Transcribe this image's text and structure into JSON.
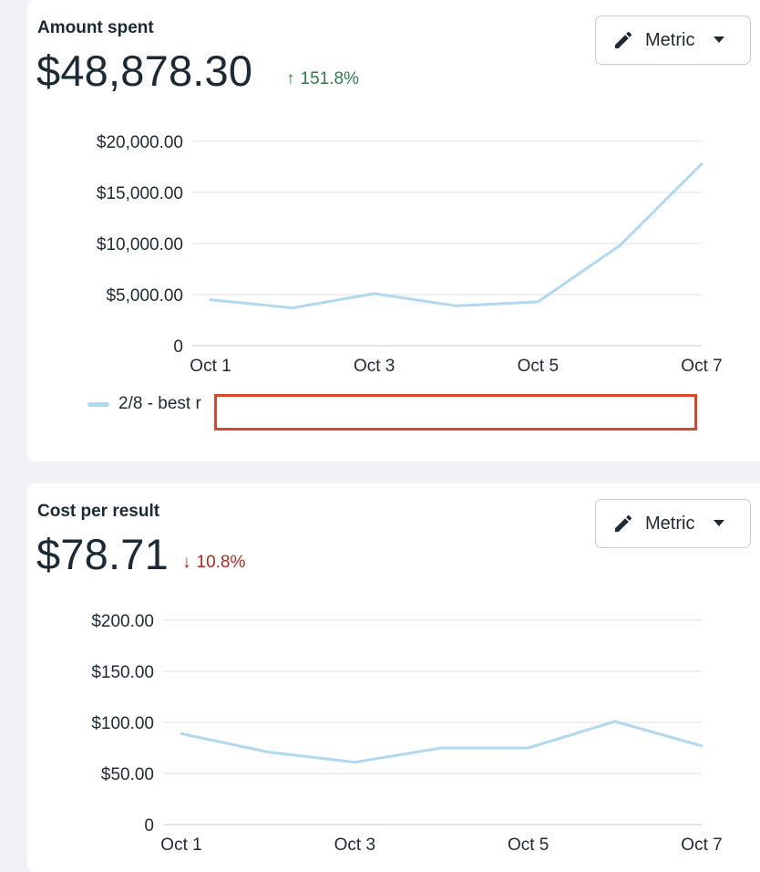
{
  "cards": [
    {
      "title": "Amount spent",
      "value": "$48,878.30",
      "change": {
        "direction": "up",
        "arrow": "↑",
        "text": "151.8%",
        "color": "#2e7d45"
      },
      "metric_button": {
        "label": "Metric",
        "icon": "pencil-icon",
        "caret": "caret-down-icon"
      },
      "legend_label": "2/8 - best r",
      "chart_data": {
        "type": "line",
        "x": [
          "Oct 1",
          "Oct 2",
          "Oct 3",
          "Oct 4",
          "Oct 5",
          "Oct 6",
          "Oct 7"
        ],
        "tick_labels_x": [
          "Oct 1",
          "Oct 3",
          "Oct 5",
          "Oct 7"
        ],
        "series": [
          {
            "name": "2/8 - best r",
            "color": "#b0d8f0",
            "values": [
              4500,
              3700,
              5100,
              3900,
              4300,
              9800,
              17800
            ]
          }
        ],
        "ylim": [
          0,
          20000
        ],
        "yticks": [
          0,
          5000,
          10000,
          15000,
          20000
        ],
        "ytick_labels": [
          "0",
          "$5,000.00",
          "$10,000.00",
          "$15,000.00",
          "$20,000.00"
        ],
        "grid": true
      }
    },
    {
      "title": "Cost per result",
      "value": "$78.71",
      "change": {
        "direction": "down",
        "arrow": "↓",
        "text": "10.8%",
        "color": "#b3261e"
      },
      "metric_button": {
        "label": "Metric",
        "icon": "pencil-icon",
        "caret": "caret-down-icon"
      },
      "chart_data": {
        "type": "line",
        "x": [
          "Oct 1",
          "Oct 2",
          "Oct 3",
          "Oct 4",
          "Oct 5",
          "Oct 6",
          "Oct 7"
        ],
        "tick_labels_x": [
          "Oct 1",
          "Oct 3",
          "Oct 5",
          "Oct 7"
        ],
        "series": [
          {
            "color": "#b0d8f0",
            "values": [
              89,
              71,
              61,
              75,
              75,
              101,
              77
            ]
          }
        ],
        "ylim": [
          0,
          200
        ],
        "yticks": [
          0,
          50,
          100,
          150,
          200
        ],
        "ytick_labels": [
          "0",
          "$50.00",
          "$100.00",
          "$150.00",
          "$200.00"
        ],
        "grid": true
      }
    }
  ]
}
